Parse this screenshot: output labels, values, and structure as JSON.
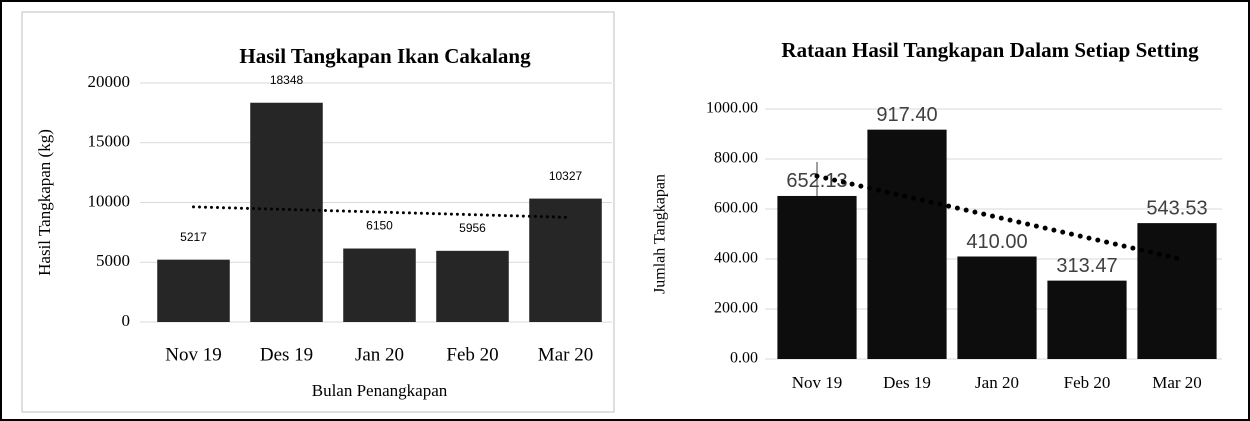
{
  "chart_data": [
    {
      "type": "bar",
      "title": "Hasil Tangkapan Ikan Cakalang",
      "y_label": "Hasil Tangkapan (kg)",
      "x_label": "Bulan Penangkapan",
      "categories": [
        "Nov 19",
        "Des 19",
        "Jan 20",
        "Feb 20",
        "Mar 20"
      ],
      "values": [
        5217,
        18348,
        6150,
        5956,
        10327
      ],
      "color": "#262626",
      "ylim": [
        0,
        20000
      ],
      "yticks": [
        0,
        5000,
        10000,
        15000,
        20000
      ],
      "grid": true,
      "trendline": true
    },
    {
      "type": "bar",
      "title": "Rataan Hasil Tangkapan Dalam Setiap Setting",
      "y_label": "Jumlah Tangkapan",
      "categories": [
        "Nov 19",
        "Des 19",
        "Jan 20",
        "Feb 20",
        "Mar 20"
      ],
      "values": [
        652.13,
        917.4,
        410,
        313.47,
        543.53
      ],
      "value_labels": [
        "652.13",
        "917.40",
        "410.00",
        "313.47",
        "543.53"
      ],
      "errors": [
        136,
        null,
        null,
        null,
        null
      ],
      "color": "#0d0d0d",
      "ylim": [
        0,
        1000
      ],
      "yticks": [
        {
          "value": 0,
          "label": "0.00"
        },
        {
          "value": 200,
          "label": "200.00"
        },
        {
          "value": 400,
          "label": "400.00"
        },
        {
          "value": 600,
          "label": "600.00"
        },
        {
          "value": 800,
          "label": "800.00"
        },
        {
          "value": 1000,
          "label": "1000.00"
        }
      ],
      "grid": true,
      "trendline": true
    }
  ]
}
